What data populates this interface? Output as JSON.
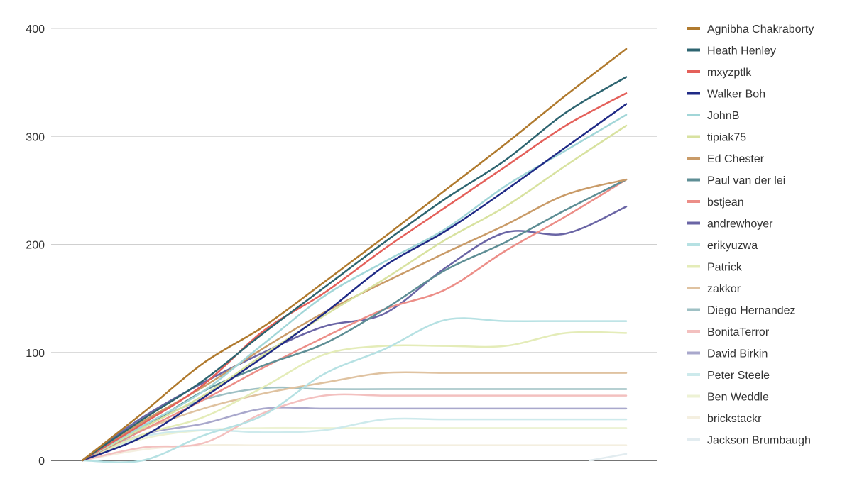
{
  "chart_data": {
    "type": "line",
    "title": "",
    "xlabel": "",
    "ylabel": "",
    "ylim": [
      0,
      400
    ],
    "yticks": [
      0,
      100,
      200,
      300,
      400
    ],
    "grid": true,
    "legend_position": "right",
    "x": [
      0,
      1,
      2,
      3,
      4,
      5,
      6,
      7,
      8,
      9,
      10
    ],
    "series": [
      {
        "name": "Agnibha Chakraborty",
        "color": "#b07a2e",
        "values": [
          0,
          44,
          90,
          124,
          165,
          207,
          250,
          293,
          338,
          381,
          null
        ]
      },
      {
        "name": "Heath Henley",
        "color": "#2d6470",
        "values": [
          0,
          38,
          74,
          118,
          160,
          202,
          242,
          278,
          322,
          355,
          null
        ]
      },
      {
        "name": "mxyzptlk",
        "color": "#e4605a",
        "values": [
          0,
          34,
          70,
          120,
          155,
          196,
          234,
          272,
          310,
          340,
          null
        ]
      },
      {
        "name": "Walker Boh",
        "color": "#1f2a86",
        "values": [
          0,
          22,
          58,
          96,
          136,
          180,
          212,
          250,
          290,
          330,
          null
        ]
      },
      {
        "name": "JohnB",
        "color": "#a2d6d8",
        "values": [
          0,
          32,
          64,
          108,
          152,
          184,
          214,
          254,
          287,
          320,
          null
        ]
      },
      {
        "name": "tipiak75",
        "color": "#d8e2a0",
        "values": [
          0,
          30,
          60,
          98,
          134,
          168,
          204,
          235,
          273,
          310,
          null
        ]
      },
      {
        "name": "Ed Chester",
        "color": "#c99b68",
        "values": [
          0,
          36,
          68,
          104,
          137,
          165,
          192,
          218,
          246,
          260,
          null
        ]
      },
      {
        "name": "Paul van der lei",
        "color": "#5e8e95",
        "values": [
          0,
          30,
          64,
          88,
          108,
          140,
          176,
          202,
          232,
          260,
          null
        ]
      },
      {
        "name": "bstjean",
        "color": "#ec8e88",
        "values": [
          0,
          28,
          56,
          86,
          114,
          140,
          158,
          194,
          226,
          260,
          null
        ]
      },
      {
        "name": "andrewhoyer",
        "color": "#6a65a5",
        "values": [
          0,
          40,
          72,
          100,
          124,
          136,
          178,
          211,
          210,
          235,
          null
        ]
      },
      {
        "name": "erikyuzwa",
        "color": "#b6e1e3",
        "values": [
          0,
          0,
          23,
          42,
          80,
          103,
          130,
          129,
          129,
          129,
          null
        ]
      },
      {
        "name": "Patrick",
        "color": "#e4ecb8",
        "values": [
          0,
          24,
          40,
          68,
          98,
          106,
          106,
          106,
          118,
          118,
          null
        ]
      },
      {
        "name": "zakkor",
        "color": "#dfc2a0",
        "values": [
          0,
          28,
          48,
          62,
          72,
          81,
          81,
          81,
          81,
          81,
          null
        ]
      },
      {
        "name": "Diego Hernandez",
        "color": "#9ec0c4",
        "values": [
          0,
          32,
          56,
          67,
          66,
          66,
          66,
          66,
          66,
          66,
          null
        ]
      },
      {
        "name": "BonitaTerror",
        "color": "#f3c0bf",
        "values": [
          0,
          12,
          16,
          44,
          60,
          60,
          60,
          60,
          60,
          60,
          null
        ]
      },
      {
        "name": "David Birkin",
        "color": "#a9a8cc",
        "values": [
          0,
          24,
          34,
          48,
          48,
          48,
          48,
          48,
          48,
          48,
          null
        ]
      },
      {
        "name": "Peter Steele",
        "color": "#cdeaec",
        "values": [
          0,
          22,
          28,
          26,
          28,
          38,
          38,
          38,
          38,
          38,
          null
        ]
      },
      {
        "name": "Ben Weddle",
        "color": "#edf2d4",
        "values": [
          0,
          20,
          28,
          30,
          30,
          30,
          30,
          30,
          30,
          30,
          null
        ]
      },
      {
        "name": "brickstackr",
        "color": "#f4efe0",
        "values": [
          0,
          10,
          14,
          14,
          14,
          14,
          14,
          14,
          14,
          14,
          null
        ]
      },
      {
        "name": "Jackson Brumbaugh",
        "color": "#e2ecf0",
        "values": [
          null,
          null,
          null,
          null,
          null,
          null,
          null,
          null,
          null,
          6,
          null
        ]
      }
    ]
  }
}
